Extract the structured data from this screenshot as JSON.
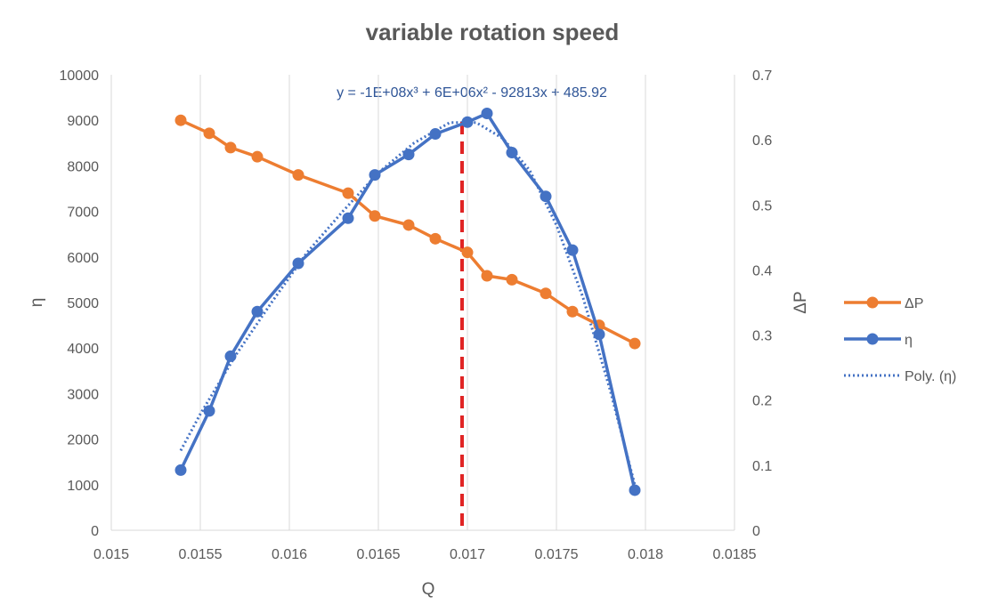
{
  "chart_data": {
    "type": "line",
    "title": "variable rotation speed",
    "xlabel": "Q",
    "ylabel_left": "η",
    "ylabel_right": "ΔP",
    "xlim": [
      0.015,
      0.0185
    ],
    "ylim_left": [
      0,
      10000
    ],
    "ylim_right": [
      0,
      0.7
    ],
    "x_ticks": [
      "0.015",
      "0.0155",
      "0.016",
      "0.0165",
      "0.017",
      "0.0175",
      "0.018",
      "0.0185"
    ],
    "y_left_ticks": [
      "0",
      "1000",
      "2000",
      "3000",
      "4000",
      "5000",
      "6000",
      "7000",
      "8000",
      "9000",
      "10000"
    ],
    "y_right_ticks": [
      "0",
      "0.1",
      "0.2",
      "0.3",
      "0.4",
      "0.5",
      "0.6",
      "0.7"
    ],
    "grid": "vertical",
    "legend_position": "right",
    "series": [
      {
        "name": "ΔP",
        "axis": "right",
        "color": "#ed7d31",
        "x": [
          0.01539,
          0.01555,
          0.01567,
          0.01582,
          0.01605,
          0.01633,
          0.01648,
          0.01667,
          0.01682,
          0.017,
          0.01711,
          0.01725,
          0.01744,
          0.01759,
          0.01774,
          0.01794
        ],
        "y": [
          0.63,
          0.61,
          0.588,
          0.574,
          0.546,
          0.518,
          0.483,
          0.469,
          0.448,
          0.427,
          0.391,
          0.385,
          0.364,
          0.336,
          0.315,
          0.287
        ]
      },
      {
        "name": "η",
        "axis": "left",
        "color": "#4472c4",
        "x": [
          0.01539,
          0.01555,
          0.01567,
          0.01582,
          0.01605,
          0.01633,
          0.01648,
          0.01667,
          0.01682,
          0.017,
          0.01711,
          0.01725,
          0.01744,
          0.01759,
          0.01774,
          0.01794
        ],
        "y": [
          1320,
          2620,
          3820,
          4800,
          5860,
          6850,
          7800,
          8250,
          8700,
          8960,
          9150,
          8290,
          7330,
          6150,
          4300,
          880
        ]
      }
    ],
    "trendline": {
      "name": "Poly. (η)",
      "color": "#4472c4",
      "equation": "y = -1E+08x³ + 6E+06x² - 92813x + 485.92",
      "x": [
        0.01539,
        0.0155,
        0.0157,
        0.0159,
        0.0161,
        0.0163,
        0.0165,
        0.0167,
        0.0169,
        0.01705,
        0.0172,
        0.01735,
        0.0175,
        0.01765,
        0.0178,
        0.01794
      ],
      "y": [
        1750,
        2550,
        3850,
        5000,
        6100,
        7000,
        7850,
        8500,
        8950,
        8950,
        8600,
        7900,
        6700,
        5100,
        3100,
        1000
      ]
    },
    "reference_line": {
      "x": 0.01697,
      "color": "#e02424",
      "style": "dashed"
    }
  }
}
